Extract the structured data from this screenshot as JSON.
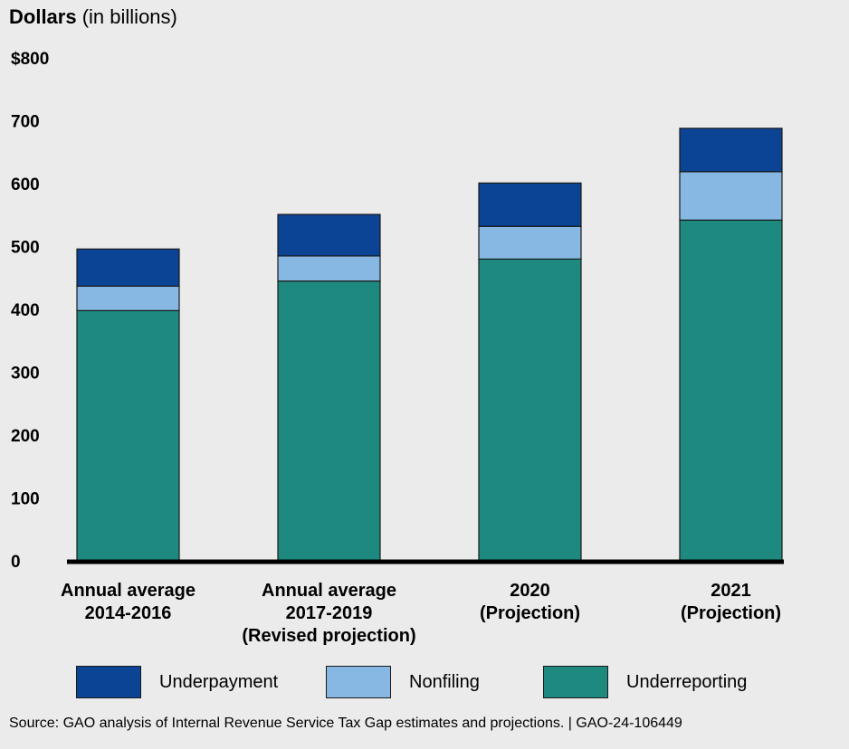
{
  "chart_data": {
    "type": "bar",
    "stacked": true,
    "ylabel_bold": "Dollars",
    "ylabel_rest": "(in billions)",
    "ylim": [
      0,
      800
    ],
    "yticks": [
      "0",
      "100",
      "200",
      "300",
      "400",
      "500",
      "600",
      "700",
      "$800"
    ],
    "ytick_values": [
      0,
      100,
      200,
      300,
      400,
      500,
      600,
      700,
      800
    ],
    "grid": false,
    "legend_position": "bottom",
    "categories": [
      [
        "Annual average",
        "2014-2016"
      ],
      [
        "Annual average",
        "2017-2019",
        "(Revised projection)"
      ],
      [
        "2020",
        "(Projection)"
      ],
      [
        "2021",
        "(Projection)"
      ]
    ],
    "series": [
      {
        "name": "Underreporting",
        "color": "#1e8a7f",
        "values": [
          398,
          445,
          480,
          542
        ]
      },
      {
        "name": "Nonfiling",
        "color": "#86b8e3",
        "values": [
          39,
          40,
          52,
          77
        ]
      },
      {
        "name": "Underpayment",
        "color": "#0b4494",
        "values": [
          59,
          66,
          69,
          69
        ]
      }
    ],
    "legend_order": [
      "Underpayment",
      "Nonfiling",
      "Underreporting"
    ],
    "source": "Source: GAO analysis of Internal Revenue Service Tax Gap estimates and projections.  |  GAO-24-106449"
  }
}
